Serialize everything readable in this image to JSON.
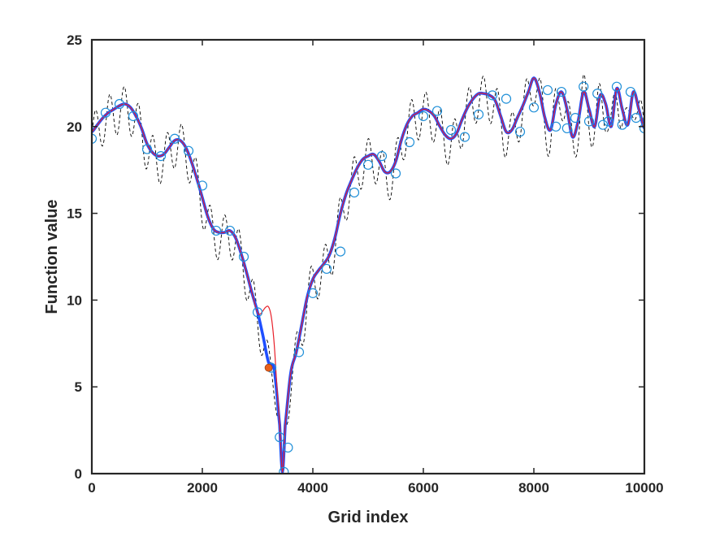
{
  "chart_data": {
    "type": "line",
    "title": "",
    "xlabel": "Grid index",
    "ylabel": "Function value",
    "xlim": [
      0,
      10000
    ],
    "ylim": [
      0,
      25
    ],
    "xticks": [
      0,
      2000,
      4000,
      6000,
      8000,
      10000
    ],
    "yticks": [
      0,
      5,
      10,
      15,
      20,
      25
    ],
    "xtick_labels": [
      "0",
      "2000",
      "4000",
      "6000",
      "8000",
      "10000"
    ],
    "ytick_labels": [
      "0",
      "5",
      "10",
      "15",
      "20",
      "25"
    ],
    "grid": false,
    "legend": "none",
    "series": [
      {
        "style": "dashed-oscillating",
        "color": "#000000",
        "x": [
          0,
          100,
          200,
          300,
          400,
          500,
          600,
          700,
          800,
          900,
          1000,
          1100,
          1200,
          1300,
          1400,
          1500,
          1600,
          1700,
          1800,
          1900,
          2000,
          2100,
          2200,
          2300,
          2400,
          2500,
          2600,
          2700,
          2800,
          2900,
          3000,
          3100,
          3200,
          3300,
          3400,
          3450,
          3500,
          3600,
          3700,
          3800,
          3900,
          4000,
          4100,
          4200,
          4300,
          4400,
          4500,
          4600,
          4700,
          4800,
          4900,
          5000,
          5100,
          5200,
          5300,
          5400,
          5500,
          5600,
          5700,
          5800,
          5900,
          6000,
          6100,
          6200,
          6300,
          6400,
          6500,
          6600,
          6700,
          6800,
          6900,
          7000,
          7100,
          7200,
          7300,
          7400,
          7500,
          7600,
          7700,
          7800,
          7900,
          8000,
          8100,
          8200,
          8300,
          8400,
          8500,
          8600,
          8700,
          8800,
          8900,
          9000,
          9100,
          9200,
          9300,
          9400,
          9500,
          9600,
          9700,
          9800,
          9900,
          10000
        ],
        "y": [
          19.7,
          20.1,
          20.5,
          20.8,
          21.0,
          21.2,
          21.3,
          21.1,
          20.6,
          19.9,
          19.0,
          18.5,
          18.3,
          18.4,
          18.8,
          19.2,
          19.2,
          18.8,
          18.0,
          17.0,
          15.9,
          14.8,
          14.1,
          13.9,
          13.9,
          14.0,
          13.6,
          12.7,
          11.6,
          10.4,
          9.3,
          7.9,
          6.4,
          6.0,
          2.8,
          0.1,
          2.8,
          5.8,
          7.0,
          8.6,
          10.2,
          11.2,
          11.7,
          12.1,
          12.6,
          13.6,
          15.0,
          16.1,
          16.9,
          17.6,
          18.1,
          18.3,
          18.4,
          18.0,
          17.4,
          17.4,
          18.0,
          19.2,
          20.1,
          20.6,
          20.8,
          21.0,
          20.9,
          20.6,
          20.0,
          19.5,
          19.3,
          19.6,
          20.4,
          21.1,
          21.6,
          21.9,
          21.9,
          21.8,
          21.5,
          20.6,
          19.7,
          19.8,
          20.5,
          21.2,
          22.0,
          22.8,
          22.0,
          20.5,
          19.8,
          21.3,
          22.0,
          21.0,
          19.4,
          20.3,
          22.0,
          21.0,
          20.0,
          21.8,
          21.3,
          20.0,
          22.2,
          21.0,
          20.1,
          22.0,
          21.0,
          19.9
        ],
        "oscillation_amplitude": 1.3
      },
      {
        "style": "solid-thick",
        "color": "#1f4fff",
        "x": [
          0,
          100,
          200,
          300,
          400,
          500,
          600,
          700,
          800,
          900,
          1000,
          1100,
          1200,
          1300,
          1400,
          1500,
          1600,
          1700,
          1800,
          1900,
          2000,
          2100,
          2200,
          2300,
          2400,
          2500,
          2600,
          2700,
          2800,
          2900,
          3000,
          3100,
          3200,
          3300,
          3400,
          3450,
          3500,
          3600,
          3700,
          3800,
          3900,
          4000,
          4100,
          4200,
          4300,
          4400,
          4500,
          4600,
          4700,
          4800,
          4900,
          5000,
          5100,
          5200,
          5300,
          5400,
          5500,
          5600,
          5700,
          5800,
          5900,
          6000,
          6100,
          6200,
          6300,
          6400,
          6500,
          6600,
          6700,
          6800,
          6900,
          7000,
          7100,
          7200,
          7300,
          7400,
          7500,
          7600,
          7700,
          7800,
          7900,
          8000,
          8100,
          8200,
          8300,
          8400,
          8500,
          8600,
          8700,
          8800,
          8900,
          9000,
          9100,
          9200,
          9300,
          9400,
          9500,
          9600,
          9700,
          9800,
          9900,
          10000
        ],
        "y": [
          19.7,
          20.1,
          20.5,
          20.8,
          21.0,
          21.2,
          21.3,
          21.1,
          20.6,
          19.9,
          19.0,
          18.5,
          18.3,
          18.4,
          18.8,
          19.2,
          19.2,
          18.8,
          18.0,
          17.0,
          15.9,
          14.8,
          14.1,
          13.9,
          13.9,
          14.0,
          13.6,
          12.7,
          11.6,
          10.4,
          9.3,
          7.9,
          6.4,
          6.0,
          2.8,
          0.1,
          2.8,
          5.8,
          7.0,
          8.6,
          10.2,
          11.2,
          11.7,
          12.1,
          12.6,
          13.6,
          15.0,
          16.1,
          16.9,
          17.6,
          18.1,
          18.3,
          18.4,
          18.0,
          17.4,
          17.4,
          18.0,
          19.2,
          20.1,
          20.6,
          20.8,
          21.0,
          20.9,
          20.6,
          20.0,
          19.5,
          19.3,
          19.6,
          20.4,
          21.1,
          21.6,
          21.9,
          21.9,
          21.8,
          21.5,
          20.6,
          19.7,
          19.8,
          20.5,
          21.2,
          22.0,
          22.8,
          22.0,
          20.5,
          19.8,
          21.3,
          22.0,
          21.0,
          19.4,
          20.3,
          22.0,
          21.0,
          20.0,
          21.8,
          21.3,
          20.0,
          22.2,
          21.0,
          20.1,
          22.0,
          21.0,
          19.9
        ]
      },
      {
        "style": "solid-thin",
        "color": "#e8202a",
        "x": [
          0,
          100,
          200,
          300,
          400,
          500,
          600,
          700,
          800,
          900,
          1000,
          1100,
          1200,
          1300,
          1400,
          1500,
          1600,
          1700,
          1800,
          1900,
          2000,
          2100,
          2200,
          2300,
          2400,
          2500,
          2600,
          2700,
          2800,
          2900,
          3000,
          3050,
          3100,
          3150,
          3200,
          3250,
          3300,
          3350,
          3400,
          3450,
          3500,
          3600,
          3700,
          3800,
          3900,
          4000,
          4100,
          4200,
          4300,
          4400,
          4500,
          4600,
          4700,
          4800,
          4900,
          5000,
          5100,
          5200,
          5300,
          5400,
          5500,
          5600,
          5700,
          5800,
          5900,
          6000,
          6100,
          6200,
          6300,
          6400,
          6500,
          6600,
          6700,
          6800,
          6900,
          7000,
          7100,
          7200,
          7300,
          7400,
          7500,
          7600,
          7700,
          7800,
          7900,
          8000,
          8100,
          8200,
          8300,
          8400,
          8500,
          8600,
          8700,
          8800,
          8900,
          9000,
          9100,
          9200,
          9300,
          9400,
          9500,
          9600,
          9700,
          9800,
          9900,
          10000
        ],
        "y": [
          19.7,
          20.1,
          20.5,
          20.8,
          21.0,
          21.2,
          21.3,
          21.1,
          20.6,
          19.9,
          19.0,
          18.5,
          18.3,
          18.4,
          18.8,
          19.2,
          19.2,
          18.8,
          18.0,
          17.0,
          15.9,
          14.8,
          14.1,
          13.9,
          13.9,
          14.0,
          13.6,
          12.7,
          11.6,
          10.4,
          9.3,
          9.2,
          9.4,
          9.6,
          9.6,
          9.0,
          7.5,
          5.0,
          2.8,
          0.1,
          2.8,
          5.8,
          7.0,
          8.6,
          10.2,
          11.2,
          11.7,
          12.1,
          12.6,
          13.6,
          15.0,
          16.1,
          16.9,
          17.6,
          18.1,
          18.3,
          18.4,
          18.0,
          17.4,
          17.4,
          18.0,
          19.2,
          20.1,
          20.6,
          20.8,
          21.0,
          20.9,
          20.6,
          20.0,
          19.5,
          19.3,
          19.6,
          20.4,
          21.1,
          21.6,
          21.9,
          21.9,
          21.8,
          21.5,
          20.6,
          19.7,
          19.8,
          20.5,
          21.2,
          22.0,
          22.8,
          22.0,
          20.5,
          19.8,
          21.3,
          22.0,
          21.0,
          19.4,
          20.3,
          22.0,
          21.0,
          20.0,
          21.8,
          21.3,
          20.0,
          22.2,
          21.0,
          20.1,
          22.0,
          21.0,
          19.9
        ]
      },
      {
        "style": "markers-circle-open",
        "color": "#1f8fd8",
        "x": [
          0,
          250,
          500,
          750,
          1000,
          1250,
          1500,
          1750,
          2000,
          2250,
          2500,
          2750,
          3000,
          3250,
          3400,
          3475,
          3550,
          3750,
          4000,
          4250,
          4500,
          4750,
          5000,
          5250,
          5500,
          5750,
          6000,
          6250,
          6500,
          6750,
          7000,
          7250,
          7500,
          7750,
          8000,
          8250,
          8400,
          8500,
          8600,
          8750,
          8900,
          9000,
          9150,
          9250,
          9350,
          9500,
          9600,
          9750,
          9850,
          10000
        ],
        "y": [
          19.3,
          20.8,
          21.3,
          20.6,
          18.7,
          18.3,
          19.3,
          18.6,
          16.6,
          14.0,
          14.0,
          12.5,
          9.3,
          6.1,
          2.1,
          0.1,
          1.5,
          7.0,
          10.4,
          11.8,
          12.8,
          16.2,
          17.8,
          18.3,
          17.3,
          19.1,
          20.6,
          20.9,
          19.8,
          19.4,
          20.7,
          21.8,
          21.6,
          19.7,
          21.1,
          22.1,
          20.0,
          22.0,
          19.9,
          20.5,
          22.3,
          20.3,
          21.9,
          20.1,
          20.3,
          22.3,
          20.1,
          22.0,
          20.5,
          19.9
        ]
      },
      {
        "style": "marker-filled",
        "color": "#e8601c",
        "x": [
          3200
        ],
        "y": [
          6.1
        ]
      }
    ]
  }
}
